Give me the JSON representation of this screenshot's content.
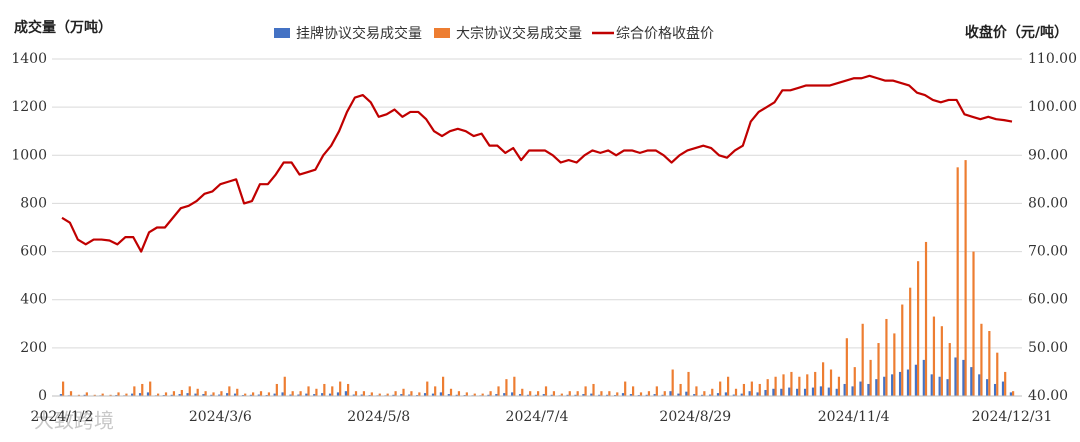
{
  "chart_data": {
    "type": "bar-line",
    "y_label": "成交量（万吨）",
    "y2_label": "收盘价（元/吨）",
    "watermark": "大致跨境",
    "categories": [
      "2024/1/2",
      null,
      null,
      null,
      null,
      null,
      null,
      null,
      null,
      null,
      null,
      null,
      null,
      null,
      null,
      null,
      null,
      null,
      null,
      null,
      "2024/3/6",
      null,
      null,
      null,
      null,
      null,
      null,
      null,
      null,
      null,
      null,
      null,
      null,
      null,
      null,
      null,
      null,
      null,
      null,
      null,
      "2024/5/8",
      null,
      null,
      null,
      null,
      null,
      null,
      null,
      null,
      null,
      null,
      null,
      null,
      null,
      null,
      null,
      null,
      null,
      null,
      null,
      "2024/7/4",
      null,
      null,
      null,
      null,
      null,
      null,
      null,
      null,
      null,
      null,
      null,
      null,
      null,
      null,
      null,
      null,
      null,
      null,
      null,
      "2024/8/29",
      null,
      null,
      null,
      null,
      null,
      null,
      null,
      null,
      null,
      null,
      null,
      null,
      null,
      null,
      null,
      null,
      null,
      null,
      null,
      "2024/11/4",
      null,
      null,
      null,
      null,
      null,
      null,
      null,
      null,
      null,
      null,
      null,
      null,
      null,
      null,
      null,
      null,
      null,
      null,
      null,
      "2024/12/31"
    ],
    "series": [
      {
        "name": "挂牌协议交易成交量",
        "type": "bar",
        "color": "#4472c4",
        "values": [
          8,
          3,
          2,
          5,
          2,
          3,
          2,
          4,
          3,
          10,
          12,
          15,
          3,
          4,
          5,
          8,
          12,
          10,
          8,
          5,
          6,
          12,
          10,
          4,
          5,
          6,
          4,
          10,
          15,
          6,
          6,
          10,
          8,
          12,
          10,
          15,
          20,
          6,
          6,
          4,
          3,
          3,
          5,
          8,
          6,
          4,
          12,
          10,
          15,
          8,
          5,
          4,
          3,
          3,
          5,
          8,
          12,
          15,
          8,
          5,
          5,
          8,
          5,
          3,
          5,
          5,
          8,
          10,
          5,
          5,
          4,
          12,
          8,
          4,
          5,
          8,
          5,
          20,
          10,
          18,
          8,
          5,
          6,
          12,
          15,
          6,
          10,
          20,
          15,
          25,
          30,
          30,
          35,
          30,
          30,
          35,
          40,
          35,
          30,
          50,
          40,
          60,
          50,
          70,
          80,
          90,
          100,
          110,
          130,
          150,
          90,
          80,
          70,
          160,
          150,
          120,
          90,
          70,
          50,
          60,
          15
        ]
      },
      {
        "name": "大宗协议交易成交量",
        "type": "bar",
        "color": "#ed7d31",
        "values": [
          60,
          20,
          5,
          15,
          5,
          10,
          5,
          15,
          10,
          40,
          50,
          60,
          10,
          15,
          20,
          25,
          40,
          30,
          20,
          15,
          20,
          40,
          30,
          10,
          15,
          20,
          15,
          50,
          80,
          20,
          20,
          40,
          30,
          50,
          40,
          60,
          50,
          20,
          20,
          15,
          10,
          10,
          20,
          30,
          20,
          15,
          60,
          40,
          80,
          30,
          20,
          15,
          10,
          10,
          20,
          40,
          70,
          80,
          30,
          20,
          20,
          40,
          20,
          10,
          20,
          20,
          40,
          50,
          20,
          20,
          15,
          60,
          40,
          15,
          20,
          40,
          20,
          110,
          50,
          100,
          40,
          20,
          30,
          60,
          80,
          30,
          50,
          60,
          50,
          70,
          80,
          90,
          100,
          80,
          90,
          100,
          140,
          110,
          80,
          240,
          120,
          300,
          150,
          220,
          320,
          260,
          380,
          450,
          560,
          640,
          330,
          290,
          220,
          950,
          980,
          600,
          300,
          270,
          180,
          100,
          20
        ]
      },
      {
        "name": "综合价格收盘价",
        "type": "line",
        "axis": "y2",
        "color": "#c00000",
        "values": [
          77,
          76,
          72.5,
          71.5,
          72.5,
          72.5,
          72.3,
          71.5,
          73,
          73,
          70,
          74,
          75,
          75,
          77,
          79,
          79.5,
          80.5,
          82,
          82.5,
          84,
          84.5,
          85,
          80,
          80.5,
          84,
          84,
          86,
          88.5,
          88.5,
          86,
          86.5,
          87,
          90,
          92,
          95,
          99,
          102,
          102.5,
          101,
          98,
          98.5,
          99.5,
          98,
          99,
          99,
          97.5,
          95,
          94,
          95,
          95.5,
          95,
          94,
          94.5,
          92,
          92,
          90.5,
          91.5,
          89,
          91,
          91,
          91,
          90,
          88.5,
          89,
          88.5,
          90,
          91,
          90.5,
          91,
          90,
          91,
          91,
          90.5,
          91,
          91,
          90,
          88.5,
          90,
          91,
          91.5,
          92,
          91.5,
          90,
          89.5,
          91,
          92,
          97,
          99,
          100,
          101,
          103.5,
          103.5,
          104,
          104.5,
          104.5,
          104.5,
          104.5,
          105,
          105.5,
          106,
          106,
          106.5,
          106,
          105.5,
          105.5,
          105,
          104.5,
          103,
          102.5,
          101.5,
          101,
          101.5,
          101.5,
          98.5,
          98,
          97.5,
          98,
          97.5,
          97.3,
          97
        ]
      }
    ],
    "ylim": [
      0,
      1400
    ],
    "yticks": [
      0,
      200,
      400,
      600,
      800,
      1000,
      1200,
      1400
    ],
    "y2lim": [
      40,
      110
    ],
    "y2ticks": [
      {
        "value": 40,
        "label": "40.00"
      },
      {
        "value": 50,
        "label": "50.00"
      },
      {
        "value": 60,
        "label": "60.00"
      },
      {
        "value": 70,
        "label": "70.00"
      },
      {
        "value": 80,
        "label": "80.00"
      },
      {
        "value": 90,
        "label": "90.00"
      },
      {
        "value": 100,
        "label": "100.00"
      },
      {
        "value": 110,
        "label": "110.00"
      }
    ],
    "grid": true
  }
}
